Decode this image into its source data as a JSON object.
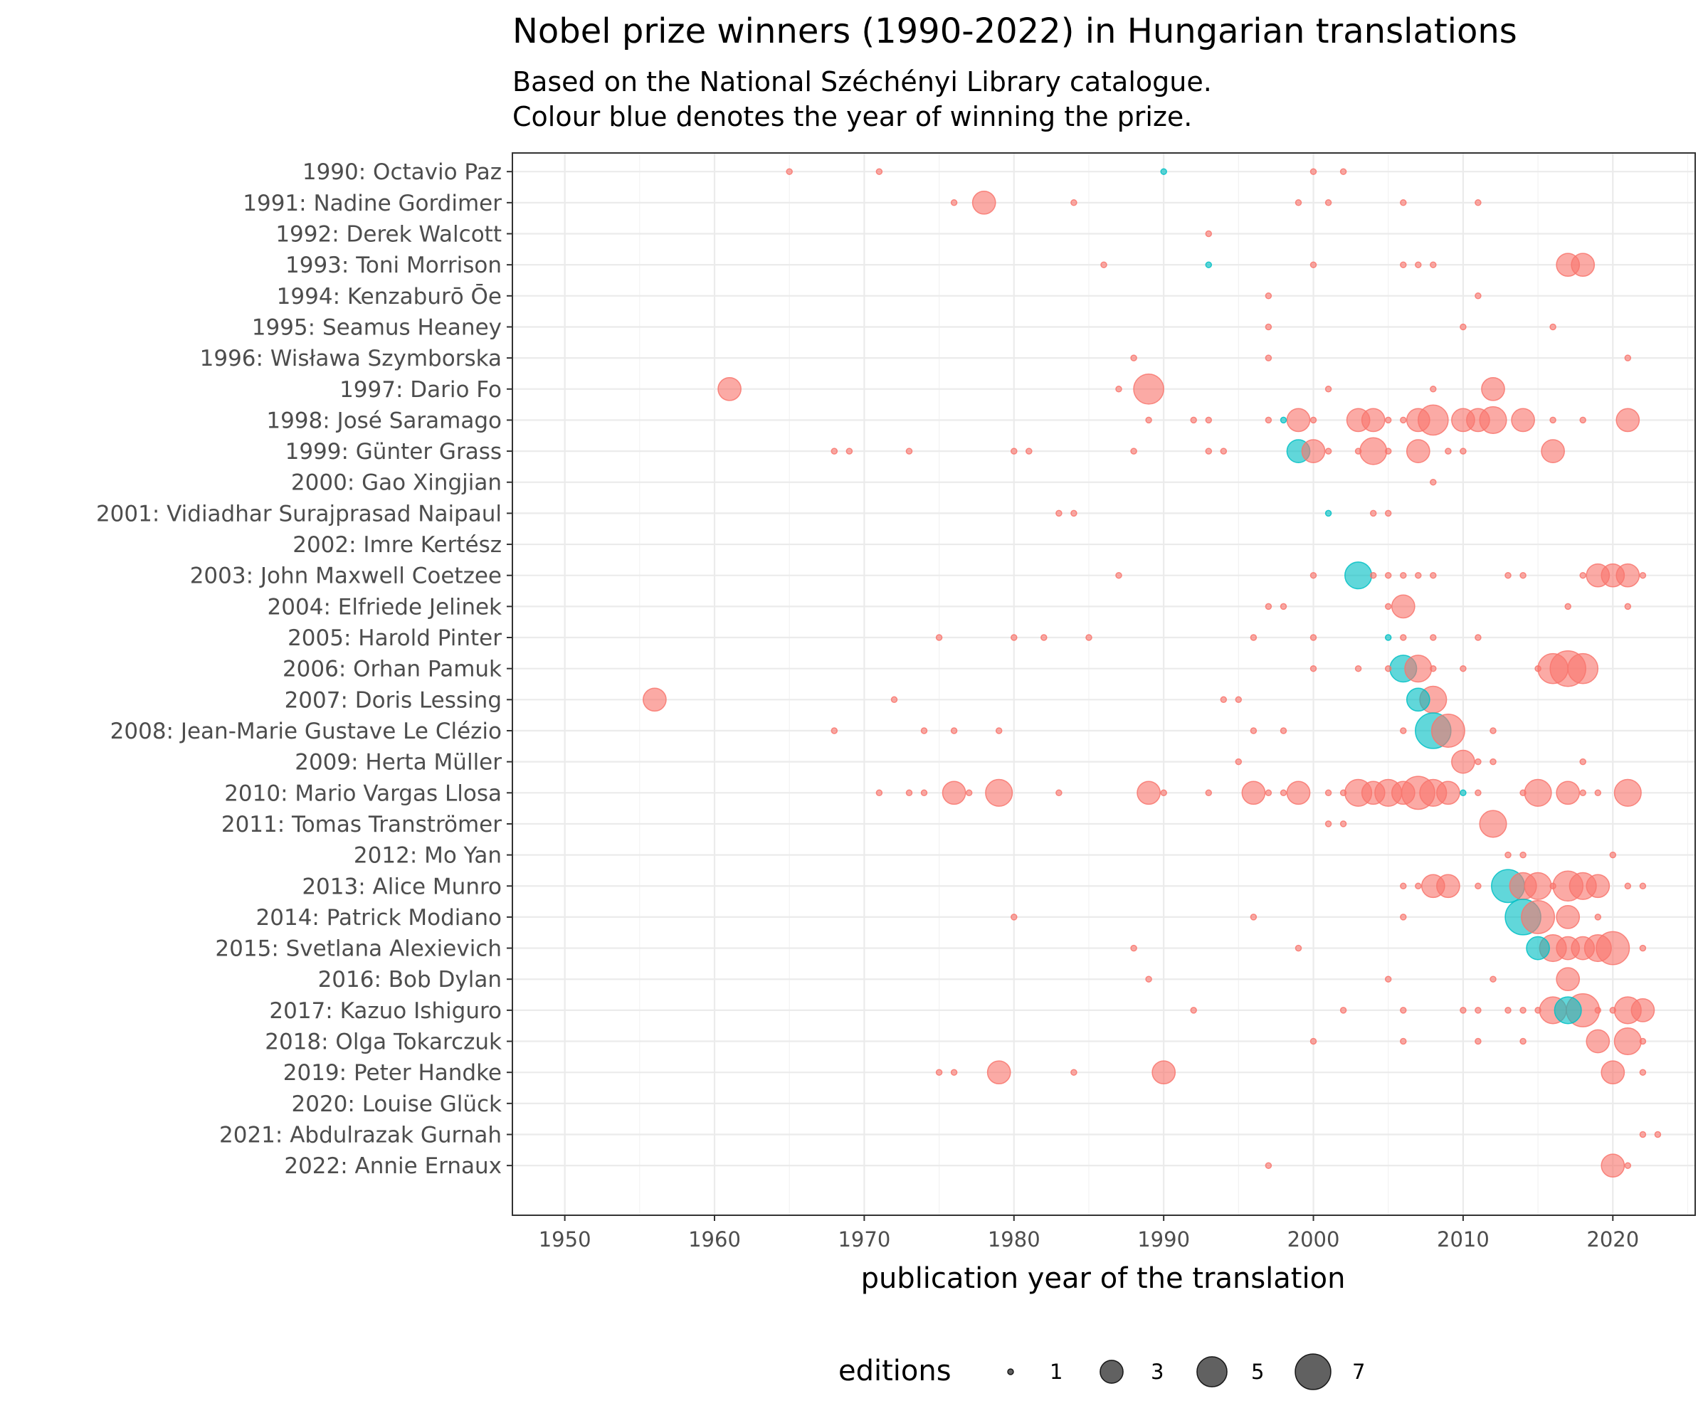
{
  "chart_data": {
    "type": "scatter",
    "title": "Nobel prize winners (1990-2022) in Hungarian translations",
    "subtitle_lines": [
      "Based on the National Széchényi Library catalogue.",
      "Colour blue denotes the year of winning the prize."
    ],
    "xlabel": "publication year of the translation",
    "ylabel": "",
    "xlim": [
      1946.5,
      2025.5
    ],
    "x_ticks": [
      1950,
      1960,
      1970,
      1980,
      1990,
      2000,
      2010,
      2020
    ],
    "grid": true,
    "colors": {
      "other_year": "#f8766d",
      "prize_year": "#00bfc4"
    },
    "size_legend": {
      "title": "editions",
      "placement": "bottom",
      "values": [
        1,
        3,
        5,
        7
      ]
    },
    "categories": [
      "1990: Octavio Paz",
      "1991: Nadine Gordimer",
      "1992: Derek Walcott",
      "1993: Toni Morrison",
      "1994: Kenzaburō Ōe",
      "1995: Seamus Heaney",
      "1996: Wisława Szymborska",
      "1997: Dario Fo",
      "1998: José Saramago",
      "1999: Günter Grass",
      "2000: Gao Xingjian",
      "2001: Vidiadhar Surajprasad Naipaul",
      "2002: Imre Kertész",
      "2003: John Maxwell Coetzee",
      "2004: Elfriede Jelinek",
      "2005: Harold Pinter",
      "2006: Orhan Pamuk",
      "2007: Doris Lessing",
      "2008: Jean-Marie Gustave Le Clézio",
      "2009: Herta Müller",
      "2010: Mario Vargas Llosa",
      "2011: Tomas Tranströmer",
      "2012: Mo Yan",
      "2013: Alice Munro",
      "2014: Patrick Modiano",
      "2015: Svetlana Alexievich",
      "2016: Bob Dylan",
      "2017: Kazuo Ishiguro",
      "2018: Olga Tokarczuk",
      "2019: Peter Handke",
      "2020: Louise Glück",
      "2021: Abdulrazak Gurnah",
      "2022: Annie Ernaux"
    ],
    "series": [
      {
        "category": "1990: Octavio Paz",
        "points": [
          [
            1965,
            1
          ],
          [
            1971,
            1
          ],
          [
            1990,
            1
          ],
          [
            2000,
            1
          ],
          [
            2002,
            1
          ]
        ]
      },
      {
        "category": "1991: Nadine Gordimer",
        "points": [
          [
            1976,
            1
          ],
          [
            1978,
            3
          ],
          [
            1984,
            1
          ],
          [
            1999,
            1
          ],
          [
            2001,
            1
          ],
          [
            2006,
            1
          ],
          [
            2011,
            1
          ]
        ]
      },
      {
        "category": "1992: Derek Walcott",
        "points": [
          [
            1993,
            1
          ]
        ]
      },
      {
        "category": "1993: Toni Morrison",
        "points": [
          [
            1986,
            1
          ],
          [
            1993,
            1
          ],
          [
            2000,
            1
          ],
          [
            2006,
            1
          ],
          [
            2007,
            1
          ],
          [
            2008,
            1
          ],
          [
            2017,
            3
          ],
          [
            2018,
            3
          ]
        ]
      },
      {
        "category": "1994: Kenzaburō Ōe",
        "points": [
          [
            1997,
            1
          ],
          [
            2011,
            1
          ]
        ]
      },
      {
        "category": "1995: Seamus Heaney",
        "points": [
          [
            1997,
            1
          ],
          [
            2010,
            1
          ],
          [
            2016,
            1
          ]
        ]
      },
      {
        "category": "1996: Wisława Szymborska",
        "points": [
          [
            1988,
            1
          ],
          [
            1997,
            1
          ],
          [
            2021,
            1
          ]
        ]
      },
      {
        "category": "1997: Dario Fo",
        "points": [
          [
            1961,
            3
          ],
          [
            1987,
            1
          ],
          [
            1989,
            5
          ],
          [
            2001,
            1
          ],
          [
            2008,
            1
          ],
          [
            2012,
            3
          ]
        ]
      },
      {
        "category": "1998: José Saramago",
        "points": [
          [
            1989,
            1
          ],
          [
            1992,
            1
          ],
          [
            1993,
            1
          ],
          [
            1997,
            1
          ],
          [
            1998,
            1
          ],
          [
            1999,
            3
          ],
          [
            2000,
            1
          ],
          [
            2003,
            3
          ],
          [
            2004,
            3
          ],
          [
            2005,
            1
          ],
          [
            2006,
            1
          ],
          [
            2007,
            3
          ],
          [
            2008,
            5
          ],
          [
            2010,
            3
          ],
          [
            2011,
            3
          ],
          [
            2012,
            4
          ],
          [
            2014,
            3
          ],
          [
            2016,
            1
          ],
          [
            2018,
            1
          ],
          [
            2021,
            3
          ]
        ]
      },
      {
        "category": "1999: Günter Grass",
        "points": [
          [
            1968,
            1
          ],
          [
            1969,
            1
          ],
          [
            1973,
            1
          ],
          [
            1980,
            1
          ],
          [
            1981,
            1
          ],
          [
            1988,
            1
          ],
          [
            1993,
            1
          ],
          [
            1994,
            1
          ],
          [
            1999,
            3
          ],
          [
            2000,
            3
          ],
          [
            2001,
            1
          ],
          [
            2003,
            1
          ],
          [
            2004,
            4
          ],
          [
            2005,
            1
          ],
          [
            2007,
            3
          ],
          [
            2009,
            1
          ],
          [
            2010,
            1
          ],
          [
            2016,
            3
          ]
        ]
      },
      {
        "category": "2000: Gao Xingjian",
        "points": [
          [
            2008,
            1
          ]
        ]
      },
      {
        "category": "2001: Vidiadhar Surajprasad Naipaul",
        "points": [
          [
            1983,
            1
          ],
          [
            1984,
            1
          ],
          [
            2001,
            1
          ],
          [
            2004,
            1
          ],
          [
            2005,
            1
          ]
        ]
      },
      {
        "category": "2002: Imre Kertész",
        "points": []
      },
      {
        "category": "2003: John Maxwell Coetzee",
        "points": [
          [
            1987,
            1
          ],
          [
            2000,
            1
          ],
          [
            2003,
            4
          ],
          [
            2004,
            1
          ],
          [
            2005,
            1
          ],
          [
            2006,
            1
          ],
          [
            2007,
            1
          ],
          [
            2008,
            1
          ],
          [
            2013,
            1
          ],
          [
            2014,
            1
          ],
          [
            2018,
            1
          ],
          [
            2019,
            3
          ],
          [
            2020,
            3
          ],
          [
            2021,
            3
          ],
          [
            2022,
            1
          ]
        ]
      },
      {
        "category": "2004: Elfriede Jelinek",
        "points": [
          [
            1997,
            1
          ],
          [
            1998,
            1
          ],
          [
            2005,
            1
          ],
          [
            2006,
            3
          ],
          [
            2017,
            1
          ],
          [
            2021,
            1
          ]
        ]
      },
      {
        "category": "2005: Harold Pinter",
        "points": [
          [
            1975,
            1
          ],
          [
            1980,
            1
          ],
          [
            1982,
            1
          ],
          [
            1985,
            1
          ],
          [
            1996,
            1
          ],
          [
            2000,
            1
          ],
          [
            2005,
            1
          ],
          [
            2006,
            1
          ],
          [
            2008,
            1
          ],
          [
            2011,
            1
          ]
        ]
      },
      {
        "category": "2006: Orhan Pamuk",
        "points": [
          [
            2000,
            1
          ],
          [
            2003,
            1
          ],
          [
            2005,
            1
          ],
          [
            2006,
            4
          ],
          [
            2007,
            4
          ],
          [
            2008,
            1
          ],
          [
            2010,
            1
          ],
          [
            2015,
            1
          ],
          [
            2016,
            5
          ],
          [
            2017,
            7
          ],
          [
            2018,
            5
          ]
        ]
      },
      {
        "category": "2007: Doris Lessing",
        "points": [
          [
            1956,
            3
          ],
          [
            1972,
            1
          ],
          [
            1994,
            1
          ],
          [
            1995,
            1
          ],
          [
            2007,
            3
          ],
          [
            2008,
            4
          ]
        ]
      },
      {
        "category": "2008: Jean-Marie Gustave Le Clézio",
        "points": [
          [
            1968,
            1
          ],
          [
            1974,
            1
          ],
          [
            1976,
            1
          ],
          [
            1979,
            1
          ],
          [
            1996,
            1
          ],
          [
            1998,
            1
          ],
          [
            2006,
            1
          ],
          [
            2008,
            7
          ],
          [
            2009,
            6
          ],
          [
            2012,
            1
          ]
        ]
      },
      {
        "category": "2009: Herta Müller",
        "points": [
          [
            1995,
            1
          ],
          [
            2010,
            3
          ],
          [
            2011,
            1
          ],
          [
            2012,
            1
          ],
          [
            2018,
            1
          ]
        ]
      },
      {
        "category": "2010: Mario Vargas Llosa",
        "points": [
          [
            1971,
            1
          ],
          [
            1973,
            1
          ],
          [
            1974,
            1
          ],
          [
            1976,
            3
          ],
          [
            1977,
            1
          ],
          [
            1979,
            4
          ],
          [
            1983,
            1
          ],
          [
            1989,
            3
          ],
          [
            1990,
            1
          ],
          [
            1993,
            1
          ],
          [
            1996,
            3
          ],
          [
            1997,
            1
          ],
          [
            1998,
            1
          ],
          [
            1999,
            3
          ],
          [
            2001,
            1
          ],
          [
            2002,
            1
          ],
          [
            2003,
            4
          ],
          [
            2004,
            3
          ],
          [
            2005,
            4
          ],
          [
            2006,
            3
          ],
          [
            2007,
            6
          ],
          [
            2008,
            4
          ],
          [
            2009,
            3
          ],
          [
            2010,
            1
          ],
          [
            2011,
            1
          ],
          [
            2014,
            1
          ],
          [
            2015,
            4
          ],
          [
            2017,
            3
          ],
          [
            2018,
            1
          ],
          [
            2019,
            1
          ],
          [
            2021,
            4
          ]
        ]
      },
      {
        "category": "2011: Tomas Tranströmer",
        "points": [
          [
            2001,
            1
          ],
          [
            2002,
            1
          ],
          [
            2012,
            4
          ]
        ]
      },
      {
        "category": "2012: Mo Yan",
        "points": [
          [
            2013,
            1
          ],
          [
            2014,
            1
          ],
          [
            2020,
            1
          ]
        ]
      },
      {
        "category": "2013: Alice Munro",
        "points": [
          [
            2006,
            1
          ],
          [
            2007,
            1
          ],
          [
            2008,
            3
          ],
          [
            2009,
            3
          ],
          [
            2011,
            1
          ],
          [
            2013,
            6
          ],
          [
            2014,
            4
          ],
          [
            2015,
            4
          ],
          [
            2016,
            1
          ],
          [
            2017,
            5
          ],
          [
            2018,
            4
          ],
          [
            2019,
            3
          ],
          [
            2021,
            1
          ],
          [
            2022,
            1
          ]
        ]
      },
      {
        "category": "2014: Patrick Modiano",
        "points": [
          [
            1980,
            1
          ],
          [
            1996,
            1
          ],
          [
            2006,
            1
          ],
          [
            2014,
            7
          ],
          [
            2015,
            6
          ],
          [
            2017,
            3
          ],
          [
            2019,
            1
          ]
        ]
      },
      {
        "category": "2015: Svetlana Alexievich",
        "points": [
          [
            1988,
            1
          ],
          [
            1999,
            1
          ],
          [
            2015,
            3
          ],
          [
            2016,
            4
          ],
          [
            2017,
            3
          ],
          [
            2018,
            3
          ],
          [
            2019,
            4
          ],
          [
            2020,
            6
          ],
          [
            2022,
            1
          ]
        ]
      },
      {
        "category": "2016: Bob Dylan",
        "points": [
          [
            1989,
            1
          ],
          [
            2005,
            1
          ],
          [
            2012,
            1
          ],
          [
            2017,
            3
          ]
        ]
      },
      {
        "category": "2017: Kazuo Ishiguro",
        "points": [
          [
            1992,
            1
          ],
          [
            2002,
            1
          ],
          [
            2006,
            1
          ],
          [
            2010,
            1
          ],
          [
            2011,
            1
          ],
          [
            2013,
            1
          ],
          [
            2014,
            1
          ],
          [
            2015,
            1
          ],
          [
            2016,
            4
          ],
          [
            2017,
            4
          ],
          [
            2018,
            6
          ],
          [
            2019,
            1
          ],
          [
            2020,
            1
          ],
          [
            2021,
            4
          ],
          [
            2022,
            3
          ]
        ]
      },
      {
        "category": "2018: Olga Tokarczuk",
        "points": [
          [
            2000,
            1
          ],
          [
            2006,
            1
          ],
          [
            2011,
            1
          ],
          [
            2014,
            1
          ],
          [
            2019,
            3
          ],
          [
            2021,
            4
          ],
          [
            2022,
            1
          ]
        ]
      },
      {
        "category": "2019: Peter Handke",
        "points": [
          [
            1975,
            1
          ],
          [
            1976,
            1
          ],
          [
            1979,
            3
          ],
          [
            1984,
            1
          ],
          [
            1990,
            3
          ],
          [
            2020,
            3
          ],
          [
            2022,
            1
          ]
        ]
      },
      {
        "category": "2020: Louise Glück",
        "points": []
      },
      {
        "category": "2021: Abdulrazak Gurnah",
        "points": [
          [
            2022,
            1
          ],
          [
            2023,
            1
          ]
        ]
      },
      {
        "category": "2022: Annie Ernaux",
        "points": [
          [
            1997,
            1
          ],
          [
            2020,
            3
          ],
          [
            2021,
            1
          ]
        ]
      }
    ]
  }
}
